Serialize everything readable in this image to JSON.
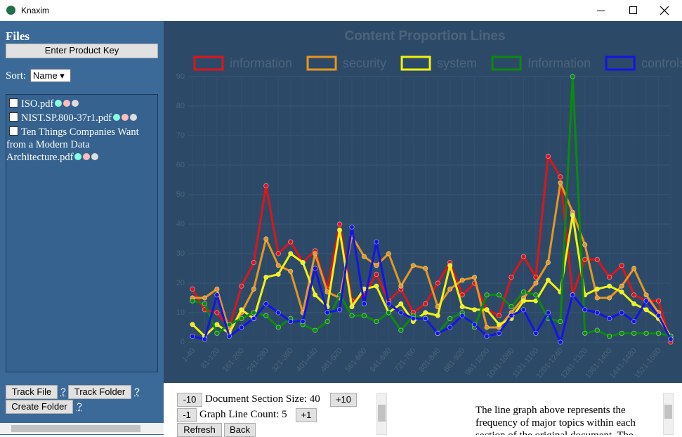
{
  "window": {
    "title": "Knaxim"
  },
  "sidebar": {
    "heading": "Files",
    "product_key_button": "Enter Product Key",
    "sort_label": "Sort:",
    "sort_value": "Name",
    "files": [
      "ISO.pdf",
      "NIST.SP.800-37r1.pdf",
      "Ten Things Companies Want from a Modern Data Architecture.pdf"
    ],
    "buttons": [
      "Track File",
      "Track Folder",
      "Create Folder"
    ],
    "help": "?"
  },
  "chart_data": {
    "type": "line",
    "title": "Content Proportion Lines",
    "categories": [
      "1-40",
      null,
      "81-120",
      null,
      "161-200",
      null,
      "241-280",
      null,
      "321-360",
      null,
      "401-440",
      null,
      "481-520",
      null,
      "561-600",
      null,
      "641-680",
      null,
      "721-760",
      null,
      "801-840",
      null,
      "881-920",
      null,
      "961-1000",
      null,
      "1041-1080",
      null,
      "1121-1160",
      null,
      "1201-1240",
      null,
      "1281-1320",
      null,
      "1361-1400",
      null,
      "1441-1480",
      null,
      "1521-1560",
      null
    ],
    "series": [
      {
        "name": "information",
        "color": "#e01418",
        "values": [
          18,
          11,
          10,
          5,
          19,
          27,
          53,
          30,
          34,
          27,
          31,
          18,
          40,
          14,
          16,
          23,
          14,
          18,
          10,
          13,
          20,
          27,
          16,
          20,
          11,
          9,
          22,
          29,
          22,
          63,
          56,
          16,
          28,
          28,
          22,
          26,
          16,
          14,
          14,
          0
        ]
      },
      {
        "name": "security",
        "color": "#e8961c",
        "values": [
          15,
          15,
          18,
          4,
          10,
          18,
          35,
          26,
          24,
          10,
          30,
          17,
          15,
          36,
          29,
          26,
          30,
          19,
          26,
          25,
          12,
          18,
          21,
          22,
          5,
          5,
          10,
          15,
          20,
          27,
          54,
          44,
          33,
          15,
          15,
          19,
          25,
          16,
          10,
          1
        ]
      },
      {
        "name": "system",
        "color": "#f2f20a",
        "values": [
          6,
          2,
          6,
          3,
          11,
          8,
          22,
          23,
          30,
          27,
          16,
          12,
          38,
          12,
          18,
          19,
          10,
          13,
          7,
          10,
          9,
          26,
          12,
          11,
          11,
          6,
          8,
          14,
          14,
          21,
          17,
          43,
          16,
          18,
          19,
          17,
          13,
          11,
          8,
          2
        ]
      },
      {
        "name": "Information",
        "color": "#0b8a0b",
        "values": [
          14,
          13,
          3,
          6,
          8,
          10,
          9,
          5,
          8,
          6,
          4,
          7,
          16,
          9,
          9,
          7,
          10,
          4,
          9,
          8,
          3,
          8,
          10,
          5,
          16,
          16,
          12,
          17,
          16,
          8,
          7,
          90,
          3,
          4,
          2,
          3,
          3,
          3,
          3,
          2
        ]
      },
      {
        "name": "controls",
        "color": "#1414e6",
        "values": [
          2,
          1,
          16,
          2,
          5,
          8,
          13,
          10,
          7,
          7,
          25,
          10,
          11,
          39,
          13,
          34,
          13,
          10,
          8,
          8,
          3,
          5,
          9,
          6,
          2,
          3,
          9,
          11,
          3,
          10,
          0,
          16,
          11,
          10,
          8,
          10,
          7,
          14,
          9,
          1
        ]
      }
    ],
    "ylim": [
      0,
      90
    ],
    "yticks": [
      0,
      10,
      20,
      30,
      40,
      50,
      60,
      70,
      80,
      90
    ],
    "grid": true,
    "legend": "top"
  },
  "controls": {
    "minus10": "-10",
    "section_size": "Document Section Size: 40",
    "plus10": "+10",
    "minus1": "-1",
    "line_count": "Graph Line Count: 5",
    "plus1": "+1",
    "refresh": "Refresh",
    "back": "Back"
  },
  "description": "The line graph above represents the frequency of major topics within each section of the original document. The"
}
